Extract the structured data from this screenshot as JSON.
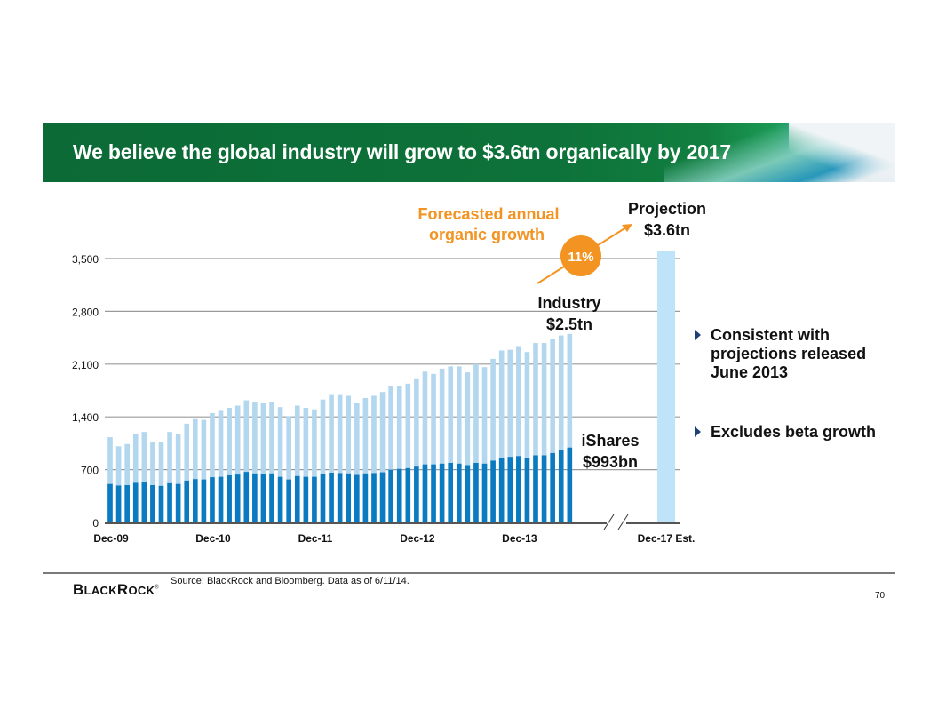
{
  "slide": {
    "title": "We believe the global industry will grow to $3.6tn organically by 2017",
    "bullets": [
      "Consistent with projections released June 2013",
      "Excludes beta growth"
    ],
    "source": "Source: BlackRock and Bloomberg. Data as of 6/11/14.",
    "logo": {
      "first": "B",
      "rest_small": "LACK",
      "second": "R",
      "rest_small2": "OCK",
      "mark": "®"
    },
    "page_number": "70"
  },
  "annotations": {
    "growth_label_line1": "Forecasted annual",
    "growth_label_line2": "organic growth",
    "growth_rate": "11%",
    "projection_line1": "Projection",
    "projection_line2": "$3.6tn",
    "industry_line1": "Industry",
    "industry_line2": "$2.5tn",
    "ishares_line1": "iShares",
    "ishares_line2": "$993bn"
  },
  "colors": {
    "ishares": "#0a7bc1",
    "industry": "#b3d7ee",
    "projection": "#bfe3f8",
    "accent_orange": "#f39322",
    "banner_green": "#0d7239",
    "bullet_arrow": "#1f3f77"
  },
  "chart_data": {
    "type": "bar",
    "stacked": true,
    "title": "",
    "xlabel": "",
    "ylabel": "",
    "ylim": [
      0,
      3500
    ],
    "yticks": [
      0,
      700,
      1400,
      2100,
      2800,
      3500
    ],
    "ytick_labels": [
      "0",
      "700",
      "1,400",
      "2,100",
      "2,800",
      "3,500"
    ],
    "grid": true,
    "xtick_labels": [
      {
        "index": 0,
        "label": "Dec-09"
      },
      {
        "index": 12,
        "label": "Dec-10"
      },
      {
        "index": 24,
        "label": "Dec-11"
      },
      {
        "index": 36,
        "label": "Dec-12"
      },
      {
        "index": 48,
        "label": "Dec-13"
      }
    ],
    "series": [
      {
        "name": "iShares",
        "values": [
          510,
          490,
          495,
          525,
          530,
          495,
          485,
          520,
          510,
          555,
          575,
          570,
          600,
          605,
          625,
          635,
          670,
          650,
          645,
          650,
          605,
          570,
          615,
          605,
          605,
          640,
          660,
          655,
          650,
          630,
          650,
          655,
          665,
          700,
          710,
          720,
          740,
          770,
          770,
          780,
          790,
          780,
          760,
          790,
          780,
          820,
          860,
          870,
          880,
          855,
          890,
          890,
          920,
          955,
          993
        ]
      },
      {
        "name": "Industry total",
        "values": [
          1130,
          1010,
          1040,
          1180,
          1200,
          1070,
          1060,
          1200,
          1170,
          1310,
          1370,
          1360,
          1450,
          1480,
          1520,
          1550,
          1620,
          1590,
          1580,
          1600,
          1530,
          1410,
          1550,
          1520,
          1500,
          1630,
          1690,
          1690,
          1680,
          1580,
          1650,
          1680,
          1730,
          1810,
          1810,
          1840,
          1900,
          2000,
          1970,
          2040,
          2070,
          2070,
          1990,
          2100,
          2060,
          2170,
          2280,
          2290,
          2340,
          2260,
          2380,
          2380,
          2430,
          2480,
          2500
        ]
      }
    ],
    "projection": {
      "label": "Dec-17 Est.",
      "value": 3600
    },
    "axis_break": true
  }
}
